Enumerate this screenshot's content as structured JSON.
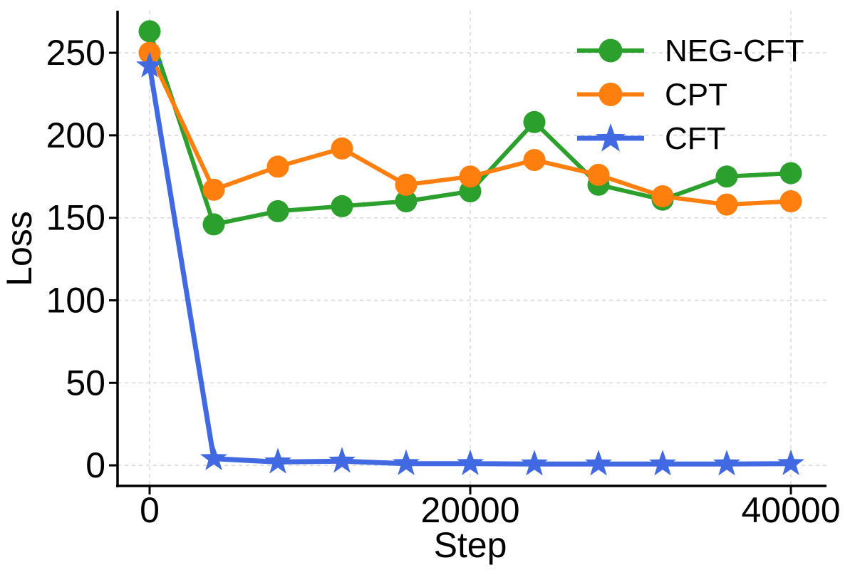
{
  "chart_data": {
    "type": "line",
    "title": "",
    "xlabel": "Step",
    "ylabel": "Loss",
    "x": [
      0,
      4000,
      8000,
      12000,
      16000,
      20000,
      24000,
      28000,
      32000,
      36000,
      40000
    ],
    "series": [
      {
        "name": "NEG-CFT",
        "color": "#2ca02c",
        "marker": "circle",
        "values": [
          263,
          146,
          154,
          157,
          160,
          166,
          208,
          170,
          161,
          175,
          177
        ]
      },
      {
        "name": "CPT",
        "color": "#ff7f0e",
        "marker": "circle",
        "values": [
          250,
          167,
          181,
          192,
          170,
          175,
          185,
          176,
          163,
          158,
          160
        ]
      },
      {
        "name": "CFT",
        "color": "#4169e1",
        "marker": "star",
        "values": [
          242,
          4,
          2,
          2.5,
          1,
          1,
          0.8,
          0.8,
          0.8,
          0.8,
          1
        ]
      }
    ],
    "xticks": [
      0,
      20000,
      40000
    ],
    "xtick_labels": [
      "0",
      "20000",
      "40000"
    ],
    "yticks": [
      0,
      50,
      100,
      150,
      200,
      250
    ],
    "ytick_labels": [
      "0",
      "50",
      "100",
      "150",
      "200",
      "250"
    ],
    "xlim": [
      -2000,
      42000
    ],
    "ylim": [
      -12.5,
      275.5
    ],
    "grid": "dashed",
    "grid_color": "#d8d8d8",
    "axis_color": "#000000",
    "legend_position": "upper right"
  }
}
